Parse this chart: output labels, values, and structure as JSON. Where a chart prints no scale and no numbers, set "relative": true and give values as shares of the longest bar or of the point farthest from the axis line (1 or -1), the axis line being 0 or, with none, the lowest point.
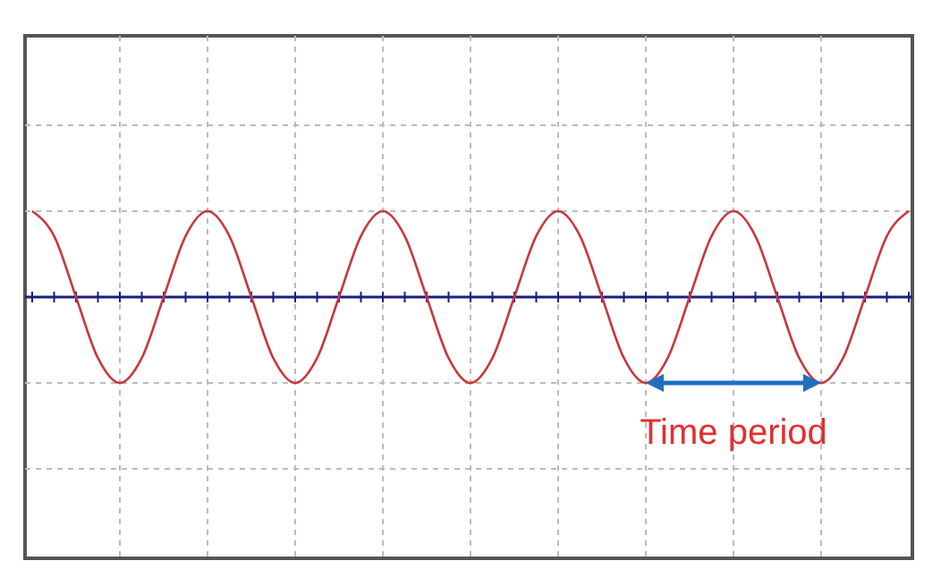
{
  "chart_data": {
    "type": "line",
    "relative": true,
    "grid": true,
    "marker": "none",
    "line_style": "solid",
    "categories": [
      null,
      null,
      null,
      null,
      null,
      null,
      null,
      null,
      null,
      null,
      null,
      null,
      null,
      null,
      null,
      null,
      null,
      null,
      null,
      null,
      null,
      null,
      null,
      null,
      null,
      null,
      null,
      null,
      null,
      null,
      null,
      null,
      null,
      null,
      null,
      null,
      null,
      null,
      null,
      null,
      null
    ],
    "series": [
      {
        "color": "#c8383c",
        "values": [
          1,
          0.71,
          0,
          -0.71,
          -1,
          -0.71,
          0,
          0.71,
          1,
          0.71,
          0,
          -0.71,
          -1,
          -0.71,
          0,
          0.71,
          1,
          0.71,
          0,
          -0.71,
          -1,
          -0.71,
          0,
          0.71,
          1,
          0.71,
          0,
          -0.71,
          -1,
          -0.71,
          0,
          0.71,
          1,
          0.71,
          0,
          -0.71,
          -1,
          -0.71,
          0,
          0.71,
          1
        ]
      }
    ],
    "ref_lines": [
      {
        "axis": "y",
        "value": 0,
        "color": "#1c1c80"
      }
    ],
    "annotations": [
      "Time period"
    ]
  }
}
